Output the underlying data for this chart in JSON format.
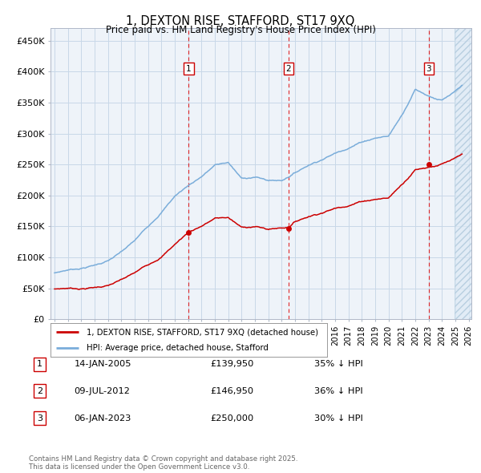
{
  "title": "1, DEXTON RISE, STAFFORD, ST17 9XQ",
  "subtitle": "Price paid vs. HM Land Registry's House Price Index (HPI)",
  "ylim": [
    0,
    470000
  ],
  "yticks": [
    0,
    50000,
    100000,
    150000,
    200000,
    250000,
    300000,
    350000,
    400000,
    450000
  ],
  "ytick_labels": [
    "£0",
    "£50K",
    "£100K",
    "£150K",
    "£200K",
    "£250K",
    "£300K",
    "£350K",
    "£400K",
    "£450K"
  ],
  "sale_prices": [
    139950,
    146950,
    250000
  ],
  "sale_labels": [
    "1",
    "2",
    "3"
  ],
  "sale_info": [
    {
      "num": "1",
      "date": "14-JAN-2005",
      "price": "£139,950",
      "pct": "35% ↓ HPI"
    },
    {
      "num": "2",
      "date": "09-JUL-2012",
      "price": "£146,950",
      "pct": "36% ↓ HPI"
    },
    {
      "num": "3",
      "date": "06-JAN-2023",
      "price": "£250,000",
      "pct": "30% ↓ HPI"
    }
  ],
  "line_color_red": "#cc0000",
  "line_color_blue": "#7aadda",
  "bg_color": "#ffffff",
  "plot_bg_color": "#eef3f9",
  "grid_color": "#c8d8e8",
  "legend_label_red": "1, DEXTON RISE, STAFFORD, ST17 9XQ (detached house)",
  "legend_label_blue": "HPI: Average price, detached house, Stafford",
  "copyright": "Contains HM Land Registry data © Crown copyright and database right 2025.\nThis data is licensed under the Open Government Licence v3.0.",
  "hpi_years": [
    1995,
    1996,
    1997,
    1998,
    1999,
    2000,
    2001,
    2002,
    2003,
    2004,
    2005,
    2006,
    2007,
    2008,
    2009,
    2010,
    2011,
    2012,
    2013,
    2014,
    2015,
    2016,
    2017,
    2018,
    2019,
    2020,
    2021,
    2022,
    2023,
    2024,
    2025,
    2025.5
  ],
  "hpi_vals": [
    75000,
    80000,
    83000,
    88000,
    95000,
    108000,
    125000,
    148000,
    172000,
    198000,
    215000,
    230000,
    248000,
    252000,
    225000,
    228000,
    222000,
    222000,
    235000,
    248000,
    258000,
    268000,
    278000,
    288000,
    295000,
    298000,
    332000,
    375000,
    365000,
    358000,
    370000,
    378000
  ],
  "red_years": [
    1995,
    1996,
    1997,
    1998,
    1999,
    2000,
    2001,
    2002,
    2003,
    2004,
    2005.04,
    2006,
    2007,
    2008,
    2009,
    2010,
    2011,
    2012.52,
    2013,
    2014,
    2015,
    2016,
    2017,
    2018,
    2019,
    2020,
    2021,
    2022,
    2023.01,
    2024,
    2025,
    2025.5
  ],
  "red_vals": [
    49000,
    50500,
    50000,
    52000,
    55000,
    63000,
    73000,
    86000,
    100000,
    120000,
    139950,
    150000,
    162000,
    163000,
    146000,
    148000,
    143000,
    146950,
    156000,
    165000,
    172000,
    179000,
    185000,
    192000,
    196000,
    198000,
    220000,
    245000,
    250000,
    255000,
    262000,
    267000
  ]
}
